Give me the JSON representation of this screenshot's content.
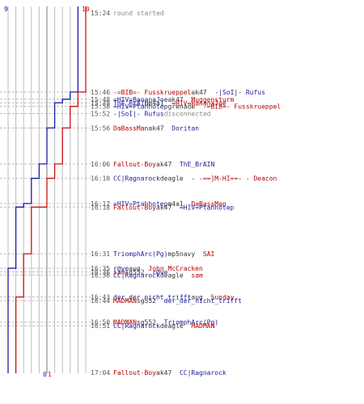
{
  "chart_data": {
    "type": "line",
    "axis": {
      "start_min": 924,
      "end_min": 1024,
      "score_min": 0,
      "score_max": 10
    },
    "scale_labels": {
      "left_top": "9",
      "right_top": "10",
      "bottom_blue": "0",
      "bottom_red": "1"
    },
    "series": [
      {
        "color": "#1a1aa8",
        "start": 9,
        "points": [
          [
            946,
            8
          ],
          [
            948,
            7
          ],
          [
            949,
            6
          ],
          [
            956,
            5
          ],
          [
            966,
            4
          ],
          [
            970,
            3
          ],
          [
            977,
            2
          ],
          [
            978,
            1
          ],
          [
            991,
            1
          ],
          [
            995,
            0
          ]
        ]
      },
      {
        "color": "#cc1111",
        "start": 10,
        "points": [
          [
            946,
            9
          ],
          [
            950,
            8
          ],
          [
            956,
            7
          ],
          [
            966,
            6
          ],
          [
            970,
            5
          ],
          [
            978,
            4
          ],
          [
            978,
            3
          ],
          [
            991,
            2
          ],
          [
            1003,
            1
          ],
          [
            1004,
            1
          ]
        ]
      }
    ],
    "events": [
      {
        "min": 924,
        "time": "15:24",
        "segs": [
          {
            "t": "round started",
            "c": "grey"
          }
        ]
      },
      {
        "min": 946,
        "time": "15:46",
        "segs": [
          {
            "t": "-=BIB=- Fusskrueppel",
            "c": "red"
          },
          {
            "t": " ak47 ",
            "c": "dark"
          },
          {
            "t": "-|SoI|- Rufus",
            "c": "blue"
          }
        ]
      },
      {
        "min": 948,
        "time": "15:48",
        "segs": [
          {
            "t": "=HIV=BananaJoe",
            "c": "blue"
          },
          {
            "t": " ak47 ",
            "c": "dark"
          },
          {
            "t": "Muggensturm",
            "c": "red"
          }
        ]
      },
      {
        "min": 949,
        "time": "15:49",
        "segs": [
          {
            "t": "ThE_BrAIN",
            "c": "blue"
          },
          {
            "t": " m4a1 ",
            "c": "dark"
          },
          {
            "t": "=HIV=BananaJoe",
            "c": "red"
          }
        ]
      },
      {
        "min": 950,
        "time": "15:50",
        "segs": [
          {
            "t": "=HIV=Ptahhotep",
            "c": "blue"
          },
          {
            "t": " grenade ",
            "c": "dark"
          },
          {
            "t": "-=BIB=- Fusskrueppel",
            "c": "red"
          }
        ]
      },
      {
        "min": 952,
        "time": "15:52",
        "segs": [
          {
            "t": "-|SoI|- Rufus",
            "c": "blue"
          },
          {
            "t": " disconnected",
            "c": "grey"
          }
        ]
      },
      {
        "min": 956,
        "time": "15:56",
        "segs": [
          {
            "t": "DaBassMan",
            "c": "red"
          },
          {
            "t": " ak47 ",
            "c": "dark"
          },
          {
            "t": "Doritan",
            "c": "blue"
          }
        ]
      },
      {
        "min": 966,
        "time": "16:06",
        "segs": [
          {
            "t": "Fallout-Boy",
            "c": "red"
          },
          {
            "t": " ak47 ",
            "c": "dark"
          },
          {
            "t": "ThE_BrAIN",
            "c": "blue"
          }
        ]
      },
      {
        "min": 970,
        "time": "16:10",
        "segs": [
          {
            "t": "CC|Ragnarock",
            "c": "blue"
          },
          {
            "t": " deagle ",
            "c": "dark"
          },
          {
            "t": "- -==]M-HI==- - Deacon",
            "c": "red"
          }
        ]
      },
      {
        "min": 977,
        "time": "16:17",
        "segs": [
          {
            "t": "=HIV=Ptahhotep",
            "c": "blue"
          },
          {
            "t": " m4a1 ",
            "c": "dark"
          },
          {
            "t": "DaBassMan",
            "c": "red"
          }
        ]
      },
      {
        "min": 978,
        "time": "16:18",
        "segs": [
          {
            "t": "Fallout-Boy",
            "c": "red"
          },
          {
            "t": " ak47 ",
            "c": "dark"
          },
          {
            "t": "=HIV=Ptahhotep",
            "c": "blue"
          }
        ]
      },
      {
        "min": 991,
        "time": "16:31",
        "segs": [
          {
            "t": "TriomphArc(Pg)",
            "c": "blue"
          },
          {
            "t": " mp5navy ",
            "c": "dark"
          },
          {
            "t": "SAI",
            "c": "red"
          }
        ]
      },
      {
        "min": 995,
        "time": "16:35",
        "segs": [
          {
            "t": "r@ve",
            "c": "blue"
          },
          {
            "t": " aug ",
            "c": "dark"
          },
          {
            "t": "John McCracken",
            "c": "red"
          }
        ]
      },
      {
        "min": 996,
        "time": "16:36",
        "segs": [
          {
            "t": "sam",
            "c": "red"
          },
          {
            "t": " sg552 ",
            "c": "dark"
          },
          {
            "t": "r@ve",
            "c": "blue"
          }
        ]
      },
      {
        "min": 996.9,
        "time": "16:36",
        "segs": [
          {
            "t": "CC|Ragnarock",
            "c": "blue"
          },
          {
            "t": " deagle ",
            "c": "dark"
          },
          {
            "t": "sam",
            "c": "red"
          }
        ]
      },
      {
        "min": 1003,
        "time": "16:43",
        "segs": [
          {
            "t": "der_der_nicht_trifft",
            "c": "blue"
          },
          {
            "t": " aug ",
            "c": "dark"
          },
          {
            "t": "Sunday",
            "c": "red"
          }
        ]
      },
      {
        "min": 1004,
        "time": "16:44",
        "segs": [
          {
            "t": "MADMAN",
            "c": "red"
          },
          {
            "t": " sg552 ",
            "c": "dark"
          },
          {
            "t": "der_der_nicht_trifft",
            "c": "blue"
          }
        ]
      },
      {
        "min": 1010,
        "time": "16:50",
        "segs": [
          {
            "t": "MADMAN",
            "c": "red"
          },
          {
            "t": " sg552 ",
            "c": "dark"
          },
          {
            "t": "TriomphArc(Pg)",
            "c": "blue"
          }
        ]
      },
      {
        "min": 1011,
        "time": "16:51",
        "segs": [
          {
            "t": "CC|Ragnarock",
            "c": "blue"
          },
          {
            "t": " deagle ",
            "c": "dark"
          },
          {
            "t": "MADMAN",
            "c": "red"
          }
        ]
      },
      {
        "min": 1024,
        "time": "17:04",
        "segs": [
          {
            "t": "Fallout-Boy",
            "c": "red"
          },
          {
            "t": " ak47 ",
            "c": "dark"
          },
          {
            "t": "CC|Ragnarock",
            "c": "blue"
          }
        ]
      }
    ]
  }
}
